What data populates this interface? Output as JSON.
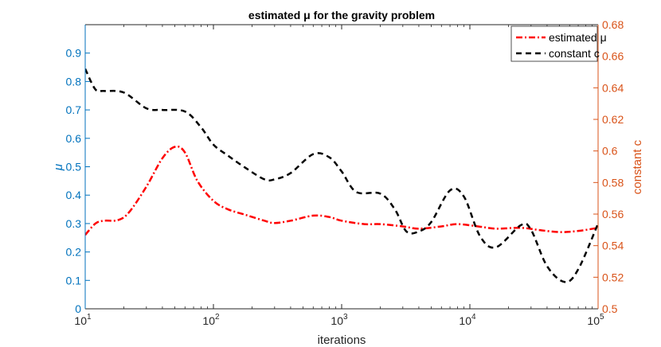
{
  "chart_data": {
    "type": "line",
    "title": "estimated μ for the gravity problem",
    "xlabel": "iterations",
    "xscale": "log",
    "xlim": [
      10,
      100000
    ],
    "x_ticks": [
      {
        "base": "10",
        "exp": "1",
        "value": 10
      },
      {
        "base": "10",
        "exp": "2",
        "value": 100
      },
      {
        "base": "10",
        "exp": "3",
        "value": 1000
      },
      {
        "base": "10",
        "exp": "4",
        "value": 10000
      },
      {
        "base": "10",
        "exp": "5",
        "value": 100000
      }
    ],
    "y_left": {
      "label": "μ",
      "lim": [
        0,
        1
      ],
      "ticks": [
        "0",
        "0.1",
        "0.2",
        "0.3",
        "0.4",
        "0.5",
        "0.6",
        "0.7",
        "0.8",
        "0.9"
      ],
      "color": "#0072BD"
    },
    "y_right": {
      "label": "constant c",
      "lim": [
        0.5,
        0.68
      ],
      "ticks": [
        "0.5",
        "0.52",
        "0.54",
        "0.56",
        "0.58",
        "0.6",
        "0.62",
        "0.64",
        "0.66",
        "0.68"
      ],
      "color": "#D95319"
    },
    "legend": {
      "position": "top-right",
      "entries": [
        {
          "label": "estimated μ",
          "color": "#FF0000",
          "style": "dash-dot"
        },
        {
          "label": "constant c",
          "color": "#000000",
          "style": "dashed"
        }
      ]
    },
    "series": [
      {
        "name": "estimated μ",
        "axis": "left",
        "color": "#FF0000",
        "style": "dash-dot",
        "x": [
          10,
          12,
          14,
          18,
          22,
          30,
          40,
          50,
          60,
          75,
          100,
          130,
          180,
          250,
          300,
          400,
          600,
          800,
          1000,
          1500,
          2000,
          3000,
          4000,
          6000,
          8000,
          12000,
          16000,
          25000,
          35000,
          50000,
          70000,
          100000
        ],
        "y": [
          0.26,
          0.3,
          0.31,
          0.312,
          0.34,
          0.43,
          0.53,
          0.57,
          0.55,
          0.45,
          0.38,
          0.35,
          0.33,
          0.31,
          0.302,
          0.31,
          0.328,
          0.323,
          0.31,
          0.298,
          0.298,
          0.29,
          0.282,
          0.29,
          0.298,
          0.289,
          0.282,
          0.285,
          0.277,
          0.27,
          0.274,
          0.285
        ]
      },
      {
        "name": "constant c",
        "axis": "right",
        "color": "#000000",
        "style": "dashed",
        "x": [
          10,
          12,
          14,
          20,
          30,
          40,
          60,
          80,
          100,
          130,
          180,
          250,
          300,
          400,
          600,
          800,
          1000,
          1300,
          2000,
          2600,
          3200,
          4000,
          5000,
          7000,
          9000,
          12000,
          16000,
          25000,
          30000,
          40000,
          55000,
          70000,
          100000
        ],
        "y": [
          0.652,
          0.639,
          0.638,
          0.637,
          0.627,
          0.626,
          0.625,
          0.615,
          0.604,
          0.597,
          0.589,
          0.582,
          0.582,
          0.586,
          0.598,
          0.596,
          0.587,
          0.574,
          0.573,
          0.563,
          0.549,
          0.549,
          0.555,
          0.575,
          0.571,
          0.546,
          0.539,
          0.553,
          0.55,
          0.527,
          0.517,
          0.525,
          0.554
        ]
      }
    ]
  }
}
